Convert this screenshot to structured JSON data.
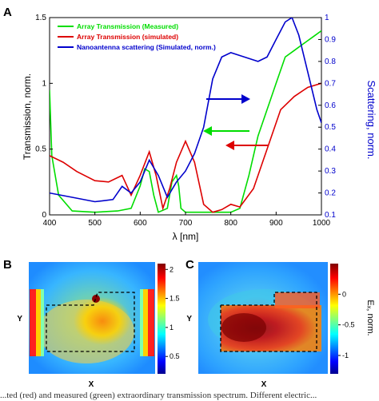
{
  "panels": {
    "a_label": "A",
    "b_label": "B",
    "c_label": "C"
  },
  "chart_data": [
    {
      "type": "line",
      "panel": "A",
      "xlabel": "λ [nm]",
      "ylabel": "Transmission, norm.",
      "y2label": "Scattering, norm.",
      "xlim": [
        400,
        1000
      ],
      "ylim": [
        0,
        1.5
      ],
      "y2lim": [
        0.1,
        1
      ],
      "xticks": [
        "400",
        "500",
        "600",
        "700",
        "800",
        "900",
        "1000"
      ],
      "yticks": [
        "0",
        "0.5",
        "1",
        "1.5"
      ],
      "y2ticks": [
        "0.1",
        "0.2",
        "0.3",
        "0.4",
        "0.5",
        "0.6",
        "0.7",
        "0.8",
        "0.9",
        "1"
      ],
      "legend_position": "top-left",
      "series": [
        {
          "name": "Array Transmission (Measured)",
          "color": "#00dd00",
          "axis": "left",
          "points": [
            [
              400,
              0.95
            ],
            [
              405,
              0.45
            ],
            [
              420,
              0.15
            ],
            [
              450,
              0.03
            ],
            [
              500,
              0.02
            ],
            [
              550,
              0.03
            ],
            [
              580,
              0.05
            ],
            [
              600,
              0.22
            ],
            [
              610,
              0.35
            ],
            [
              620,
              0.33
            ],
            [
              630,
              0.15
            ],
            [
              640,
              0.02
            ],
            [
              660,
              0.05
            ],
            [
              670,
              0.25
            ],
            [
              680,
              0.3
            ],
            [
              685,
              0.22
            ],
            [
              690,
              0.05
            ],
            [
              700,
              0.02
            ],
            [
              720,
              0.02
            ],
            [
              750,
              0.02
            ],
            [
              800,
              0.02
            ],
            [
              820,
              0.05
            ],
            [
              840,
              0.3
            ],
            [
              860,
              0.6
            ],
            [
              880,
              0.8
            ],
            [
              900,
              1.0
            ],
            [
              920,
              1.2
            ],
            [
              940,
              1.25
            ],
            [
              960,
              1.3
            ],
            [
              980,
              1.35
            ],
            [
              1000,
              1.4
            ]
          ]
        },
        {
          "name": "Array Transmission (simulated)",
          "color": "#dd0000",
          "axis": "left",
          "points": [
            [
              400,
              0.45
            ],
            [
              430,
              0.4
            ],
            [
              460,
              0.33
            ],
            [
              500,
              0.26
            ],
            [
              530,
              0.25
            ],
            [
              560,
              0.3
            ],
            [
              580,
              0.15
            ],
            [
              600,
              0.3
            ],
            [
              620,
              0.48
            ],
            [
              635,
              0.3
            ],
            [
              650,
              0.05
            ],
            [
              665,
              0.2
            ],
            [
              680,
              0.4
            ],
            [
              700,
              0.56
            ],
            [
              720,
              0.4
            ],
            [
              740,
              0.08
            ],
            [
              760,
              0.02
            ],
            [
              780,
              0.04
            ],
            [
              800,
              0.08
            ],
            [
              820,
              0.06
            ],
            [
              850,
              0.2
            ],
            [
              880,
              0.5
            ],
            [
              910,
              0.8
            ],
            [
              940,
              0.9
            ],
            [
              970,
              0.97
            ],
            [
              1000,
              1.0
            ]
          ]
        },
        {
          "name": "Nanoantenna scattering (Simulated, norm.)",
          "color": "#0000cc",
          "axis": "right",
          "points": [
            [
              400,
              0.2
            ],
            [
              450,
              0.18
            ],
            [
              500,
              0.16
            ],
            [
              540,
              0.17
            ],
            [
              560,
              0.23
            ],
            [
              580,
              0.2
            ],
            [
              600,
              0.25
            ],
            [
              620,
              0.35
            ],
            [
              640,
              0.28
            ],
            [
              660,
              0.18
            ],
            [
              680,
              0.25
            ],
            [
              700,
              0.3
            ],
            [
              720,
              0.38
            ],
            [
              740,
              0.5
            ],
            [
              760,
              0.72
            ],
            [
              780,
              0.82
            ],
            [
              800,
              0.84
            ],
            [
              830,
              0.82
            ],
            [
              860,
              0.8
            ],
            [
              880,
              0.82
            ],
            [
              900,
              0.9
            ],
            [
              920,
              0.98
            ],
            [
              935,
              1.0
            ],
            [
              950,
              0.92
            ],
            [
              970,
              0.75
            ],
            [
              990,
              0.58
            ],
            [
              1000,
              0.52
            ]
          ]
        }
      ]
    },
    {
      "type": "heatmap",
      "panel": "B",
      "xlabel": "X",
      "ylabel": "Y",
      "colorbar_ticks": [
        "0.5",
        "1",
        "1.5",
        "2"
      ],
      "colorbar_range": [
        0.2,
        2.1
      ]
    },
    {
      "type": "heatmap",
      "panel": "C",
      "xlabel": "X",
      "ylabel": "Y",
      "colorbar_label": "Eₓ, norm.",
      "colorbar_ticks": [
        "0",
        "-0.5",
        "-1"
      ],
      "colorbar_range": [
        -1.3,
        0.5
      ]
    }
  ],
  "caption_text": "...ted (red) and measured (green) extraordinary transmission spectrum. Different electric..."
}
